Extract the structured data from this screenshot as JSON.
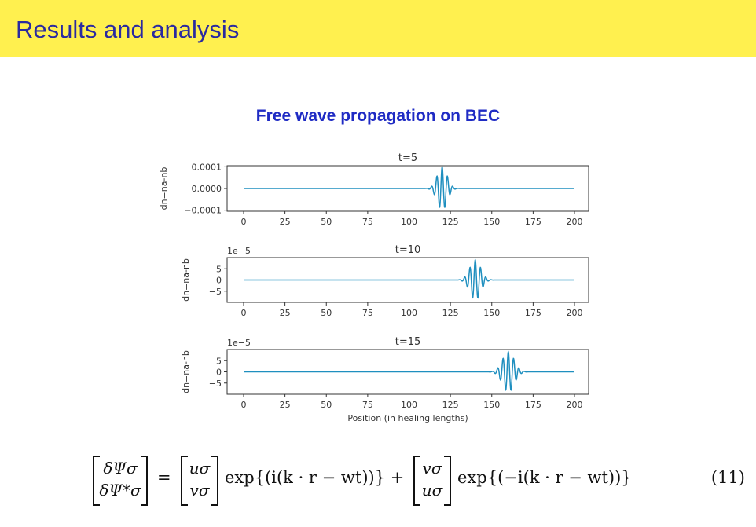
{
  "header": {
    "title": "Results and analysis"
  },
  "figure": {
    "title": "Free wave propagation on BEC"
  },
  "chart_data": [
    {
      "type": "line",
      "title": "t=5",
      "ylabel": "dn=na-nb",
      "xlabel": "",
      "offset_text": "",
      "yticks": [
        -0.0001,
        0.0,
        0.0001
      ],
      "ytick_labels": [
        "−0.0001",
        "0.0000",
        "0.0001"
      ],
      "ylim": [
        -0.000105,
        0.000105
      ],
      "xlim": [
        0,
        200
      ],
      "xticks": [
        0,
        25,
        50,
        75,
        100,
        125,
        150,
        175,
        200
      ],
      "xtick_labels": [
        "0",
        "25",
        "50",
        "75",
        "100",
        "125",
        "150",
        "175",
        "200"
      ],
      "series": [
        {
          "center": 120,
          "amplitude": 0.0001,
          "width": 4.2,
          "wavelength": 3.2,
          "color": "#1f8fbf"
        }
      ]
    },
    {
      "type": "line",
      "title": "t=10",
      "ylabel": "dn=na-nb",
      "xlabel": "",
      "offset_text": "1e−5",
      "yticks": [
        -5,
        0,
        5
      ],
      "ytick_labels": [
        "−5",
        "0",
        "5"
      ],
      "ylim": [
        -10,
        10
      ],
      "xlim": [
        0,
        200
      ],
      "xticks": [
        0,
        25,
        50,
        75,
        100,
        125,
        150,
        175,
        200
      ],
      "xtick_labels": [
        "0",
        "25",
        "50",
        "75",
        "100",
        "125",
        "150",
        "175",
        "200"
      ],
      "series": [
        {
          "center": 140,
          "amplitude": 9.0,
          "width": 4.6,
          "wavelength": 3.2,
          "color": "#1f8fbf"
        }
      ]
    },
    {
      "type": "line",
      "title": "t=15",
      "ylabel": "dn=na-nb",
      "xlabel": "Position (in healing lengths)",
      "offset_text": "1e−5",
      "yticks": [
        -5,
        0,
        5
      ],
      "ytick_labels": [
        "−5",
        "0",
        "5"
      ],
      "ylim": [
        -10,
        10
      ],
      "xlim": [
        0,
        200
      ],
      "xticks": [
        0,
        25,
        50,
        75,
        100,
        125,
        150,
        175,
        200
      ],
      "xtick_labels": [
        "0",
        "25",
        "50",
        "75",
        "100",
        "125",
        "150",
        "175",
        "200"
      ],
      "series": [
        {
          "center": 160,
          "amplitude": 9.0,
          "width": 5.0,
          "wavelength": 3.2,
          "color": "#1f8fbf"
        }
      ]
    }
  ],
  "equation": {
    "lhs_top": "δΨσ",
    "lhs_bottom": "δΨ*σ",
    "equals": "=",
    "m1_top": "uσ",
    "m1_bottom": "vσ",
    "exp1": "exp{(i(k · r − wt))} +",
    "m2_top": "vσ",
    "m2_bottom": "uσ",
    "exp2": "exp{(−i(k · r − wt))}",
    "number": "(11)"
  }
}
